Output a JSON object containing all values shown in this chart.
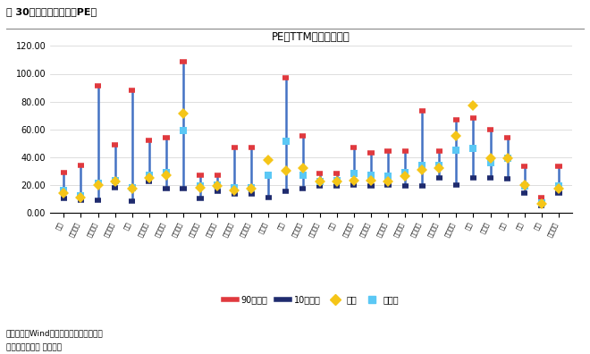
{
  "title": "PE（TTM）：申万一级",
  "fig_title": "图 30：细分行业估値（PE）",
  "footer1": "数据来源：Wind，广发证券发展研究中心",
  "footer2": "截止本周五收盘 单位：倍",
  "categories": [
    "煮炳",
    "石油石化",
    "有色金属",
    "基础化工",
    "钐铁",
    "建设材料",
    "电力设备",
    "机械设备",
    "国防军工",
    "建筑装饰",
    "公用事业",
    "交通运输",
    "房地产",
    "环保",
    "医疗护理",
    "社会金融",
    "汽车",
    "家用电器",
    "轻工制造",
    "纵织服装",
    "商贸零售",
    "农林牧渔",
    "食品饮料",
    "医药生物",
    "电子",
    "计算机",
    "传媒",
    "通信",
    "銀行",
    "非銀金融"
  ],
  "p90": [
    29,
    34,
    91,
    49,
    88,
    52,
    54,
    109,
    27,
    27,
    47,
    47,
    26,
    97,
    55,
    28,
    28,
    47,
    43,
    44,
    44,
    73,
    44,
    67,
    68,
    60,
    54,
    33,
    11,
    33
  ],
  "p10": [
    10,
    9,
    9,
    18,
    8,
    22,
    17,
    17,
    10,
    15,
    13,
    13,
    11,
    15,
    17,
    19,
    19,
    20,
    19,
    20,
    19,
    19,
    25,
    20,
    25,
    25,
    24,
    14,
    5,
    14
  ],
  "current": [
    14,
    11,
    20,
    22,
    17,
    25,
    27,
    71,
    18,
    19,
    16,
    17,
    38,
    30,
    32,
    22,
    22,
    23,
    23,
    22,
    26,
    31,
    32,
    55,
    77,
    39,
    39,
    20,
    6,
    17
  ],
  "median": [
    16,
    12,
    21,
    23,
    18,
    27,
    29,
    59,
    19,
    20,
    18,
    18,
    27,
    51,
    27,
    22,
    23,
    28,
    27,
    26,
    29,
    34,
    34,
    45,
    46,
    36,
    39,
    19,
    7,
    19
  ],
  "ylim": [
    0,
    120
  ],
  "yticks": [
    0,
    20,
    40,
    60,
    80,
    100,
    120
  ],
  "color_p90": "#e0393e",
  "color_p10": "#1f2b6e",
  "color_bar": "#4472c4",
  "color_current": "#f5c518",
  "color_median": "#5bc8f5",
  "legend_labels": [
    "90分位数",
    "10分位数",
    "当前",
    "中位数"
  ]
}
